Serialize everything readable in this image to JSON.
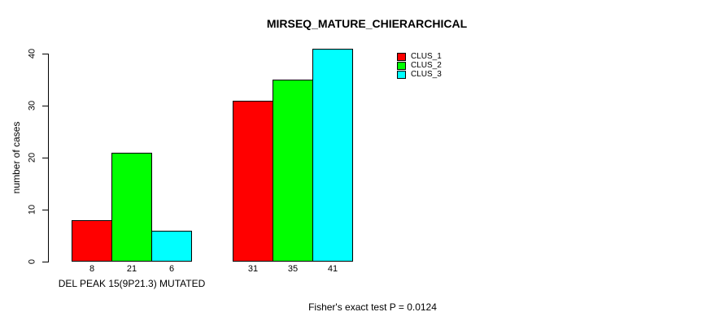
{
  "background": "#ffffff",
  "text_color": "#000000",
  "chart_data": {
    "type": "bar",
    "title": "MIRSEQ_MATURE_CHIERARCHICAL",
    "ylabel": "number of cases",
    "categories": [
      "DEL PEAK 15(9P21.3) MUTATED",
      ""
    ],
    "series": [
      {
        "name": "CLUS_1",
        "color": "#ff0000",
        "values": [
          8,
          31
        ]
      },
      {
        "name": "CLUS_2",
        "color": "#00ff00",
        "values": [
          21,
          35
        ]
      },
      {
        "name": "CLUS_3",
        "color": "#00ffff",
        "values": [
          6,
          41
        ]
      }
    ],
    "yticks": [
      0,
      10,
      20,
      30,
      40
    ],
    "ylim": [
      0,
      41
    ],
    "grid": false,
    "bar_border_color": "#000000",
    "bar_value_labels_visible": true,
    "legend_position": "right",
    "annotation": "Fisher's exact test P = 0.0124"
  }
}
